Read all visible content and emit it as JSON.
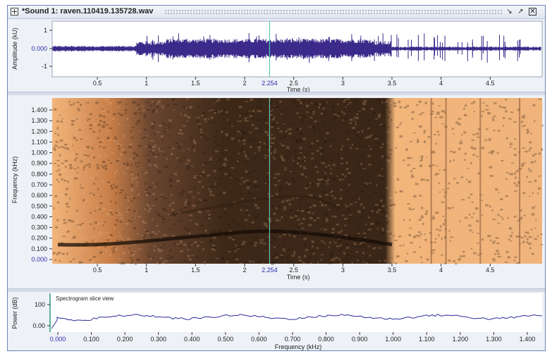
{
  "window": {
    "title": "*Sound 1: raven.110419.135728.wav"
  },
  "waveform": {
    "ylabel": "Amplitude (kU)",
    "yticks": [
      "1",
      "0.000",
      "-1"
    ],
    "xlabel": "Time (s)",
    "xticks": [
      "0.5",
      "1",
      "1.5",
      "2",
      "2.5",
      "3",
      "3.5",
      "4",
      "4.5"
    ],
    "cursor_label": "2.254"
  },
  "spectrogram": {
    "ylabel": "Frequency (kHz)",
    "yticks": [
      "1.400",
      "1.300",
      "1.200",
      "1.100",
      "1.000",
      "0.900",
      "0.800",
      "0.700",
      "0.600",
      "0.500",
      "0.400",
      "0.300",
      "0.200",
      "0.100",
      "0.000"
    ],
    "xlabel": "Time (s)",
    "xticks": [
      "0.5",
      "1",
      "1.5",
      "2",
      "2.5",
      "3",
      "3.5",
      "4",
      "4.5"
    ],
    "cursor_label": "2.254"
  },
  "slice": {
    "title": "Spectrogram slice view",
    "ylabel": "Power (dB)",
    "yticks": [
      "100",
      "0.00"
    ],
    "xlabel": "Frequency (kHz)",
    "xticks": [
      "0.000",
      "0.100",
      "0.200",
      "0.300",
      "0.400",
      "0.500",
      "0.600",
      "0.700",
      "0.800",
      "0.900",
      "1.000",
      "1.100",
      "1.200",
      "1.300",
      "1.400"
    ]
  },
  "colors": {
    "waveform": "#3b2a8a",
    "cursor": "#5ec8b0",
    "spec_light": "#f2b57a",
    "spec_dark": "#2a1a10",
    "slice_line": "#2c2c9a",
    "axis_text": "#222222",
    "highlight_tick": "#2c2cb0"
  },
  "icons": [
    "sound-file-icon",
    "minimize-icon",
    "maximize-icon",
    "close-icon"
  ]
}
